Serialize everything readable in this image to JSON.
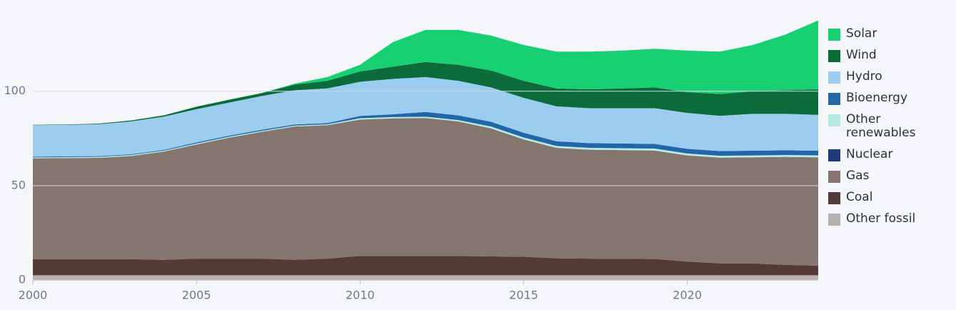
{
  "chart_data": {
    "type": "stacked-area",
    "x": [
      2000,
      2001,
      2002,
      2003,
      2004,
      2005,
      2006,
      2007,
      2008,
      2009,
      2010,
      2011,
      2012,
      2013,
      2014,
      2015,
      2016,
      2017,
      2018,
      2019,
      2020,
      2021,
      2022,
      2023,
      2024
    ],
    "xlim": [
      2000,
      2024
    ],
    "xticks": [
      2000,
      2005,
      2010,
      2015,
      2020
    ],
    "ylim": [
      0,
      140
    ],
    "yticks": [
      0,
      50,
      100
    ],
    "grid": true,
    "legend": "right",
    "series": [
      {
        "name": "Solar",
        "color": "#18cf72",
        "values": [
          0,
          0,
          0,
          0,
          0,
          0,
          0.1,
          0.1,
          0.5,
          2,
          3.5,
          13,
          17,
          18.5,
          18.5,
          19,
          19.5,
          20,
          20,
          20.5,
          22,
          22.5,
          24.5,
          29.5,
          36.5
        ]
      },
      {
        "name": "Wind",
        "color": "#0b6b3a",
        "values": [
          0.2,
          0.2,
          0.3,
          0.5,
          0.7,
          1.3,
          1.5,
          1.5,
          3,
          4,
          5.5,
          6.5,
          8,
          8.5,
          9,
          9,
          9.5,
          10,
          10.5,
          11,
          11,
          11.5,
          12,
          12.5,
          13.5
        ]
      },
      {
        "name": "Hydro",
        "color": "#9ccdee",
        "values": [
          16.7,
          16.7,
          16.9,
          17.4,
          17.6,
          17.6,
          17.5,
          17.9,
          18.1,
          18.4,
          18.1,
          18.7,
          18.5,
          18.3,
          18.2,
          18.5,
          18.5,
          18.5,
          18.7,
          18.9,
          19,
          18.7,
          19.5,
          19.3,
          19
        ]
      },
      {
        "name": "Bioenergy",
        "color": "#2266a8",
        "values": [
          0.4,
          0.4,
          0.4,
          0.4,
          0.4,
          0.6,
          0.6,
          0.6,
          0.6,
          0.6,
          1.2,
          1.5,
          2.5,
          2.5,
          2.5,
          2.5,
          2.5,
          2.5,
          2.5,
          2.5,
          2.5,
          2.5,
          2.5,
          2.5,
          2.5
        ]
      },
      {
        "name": "Other renewables",
        "color": "#b8ebe4",
        "values": [
          0.5,
          0.5,
          0.5,
          0.5,
          0.5,
          0.5,
          0.5,
          0.5,
          0.5,
          0.5,
          0.7,
          0.7,
          0.7,
          0.7,
          1,
          1,
          1,
          1,
          1,
          1,
          1,
          1,
          1,
          1,
          1
        ]
      },
      {
        "name": "Nuclear",
        "color": "#1d3a78",
        "values": [
          0,
          0,
          0,
          0,
          0,
          0,
          0,
          0,
          0,
          0,
          0,
          0,
          0,
          0,
          0,
          0,
          0,
          0,
          0,
          0,
          0,
          0,
          0,
          0,
          0
        ]
      },
      {
        "name": "Gas",
        "color": "#85756f",
        "values": [
          53.4,
          53.6,
          53.7,
          54.7,
          57.3,
          60.5,
          64.1,
          67.2,
          70.6,
          70.7,
          72.3,
          72.9,
          73.1,
          71.3,
          67.8,
          62.2,
          58.5,
          57.7,
          57.6,
          57.5,
          56.2,
          56,
          56.2,
          57.2,
          57.4
        ]
      },
      {
        "name": "Coal",
        "color": "#533a35",
        "values": [
          8.5,
          8.5,
          8.5,
          8.5,
          8.2,
          8.8,
          8.8,
          8.8,
          8.2,
          8.8,
          10.2,
          10.2,
          10.2,
          10.2,
          10,
          9.8,
          9,
          8.8,
          8.7,
          8.6,
          7.3,
          6.3,
          6.3,
          5.5,
          5.1
        ]
      },
      {
        "name": "Other fossil",
        "color": "#b8b0ad",
        "values": [
          2.5,
          2.5,
          2.5,
          2.5,
          2.5,
          2.5,
          2.5,
          2.5,
          2.5,
          2.5,
          2.5,
          2.5,
          2.5,
          2.5,
          2.5,
          2.5,
          2.5,
          2.5,
          2.5,
          2.5,
          2.5,
          2.5,
          2.5,
          2.5,
          2.5
        ]
      }
    ]
  }
}
